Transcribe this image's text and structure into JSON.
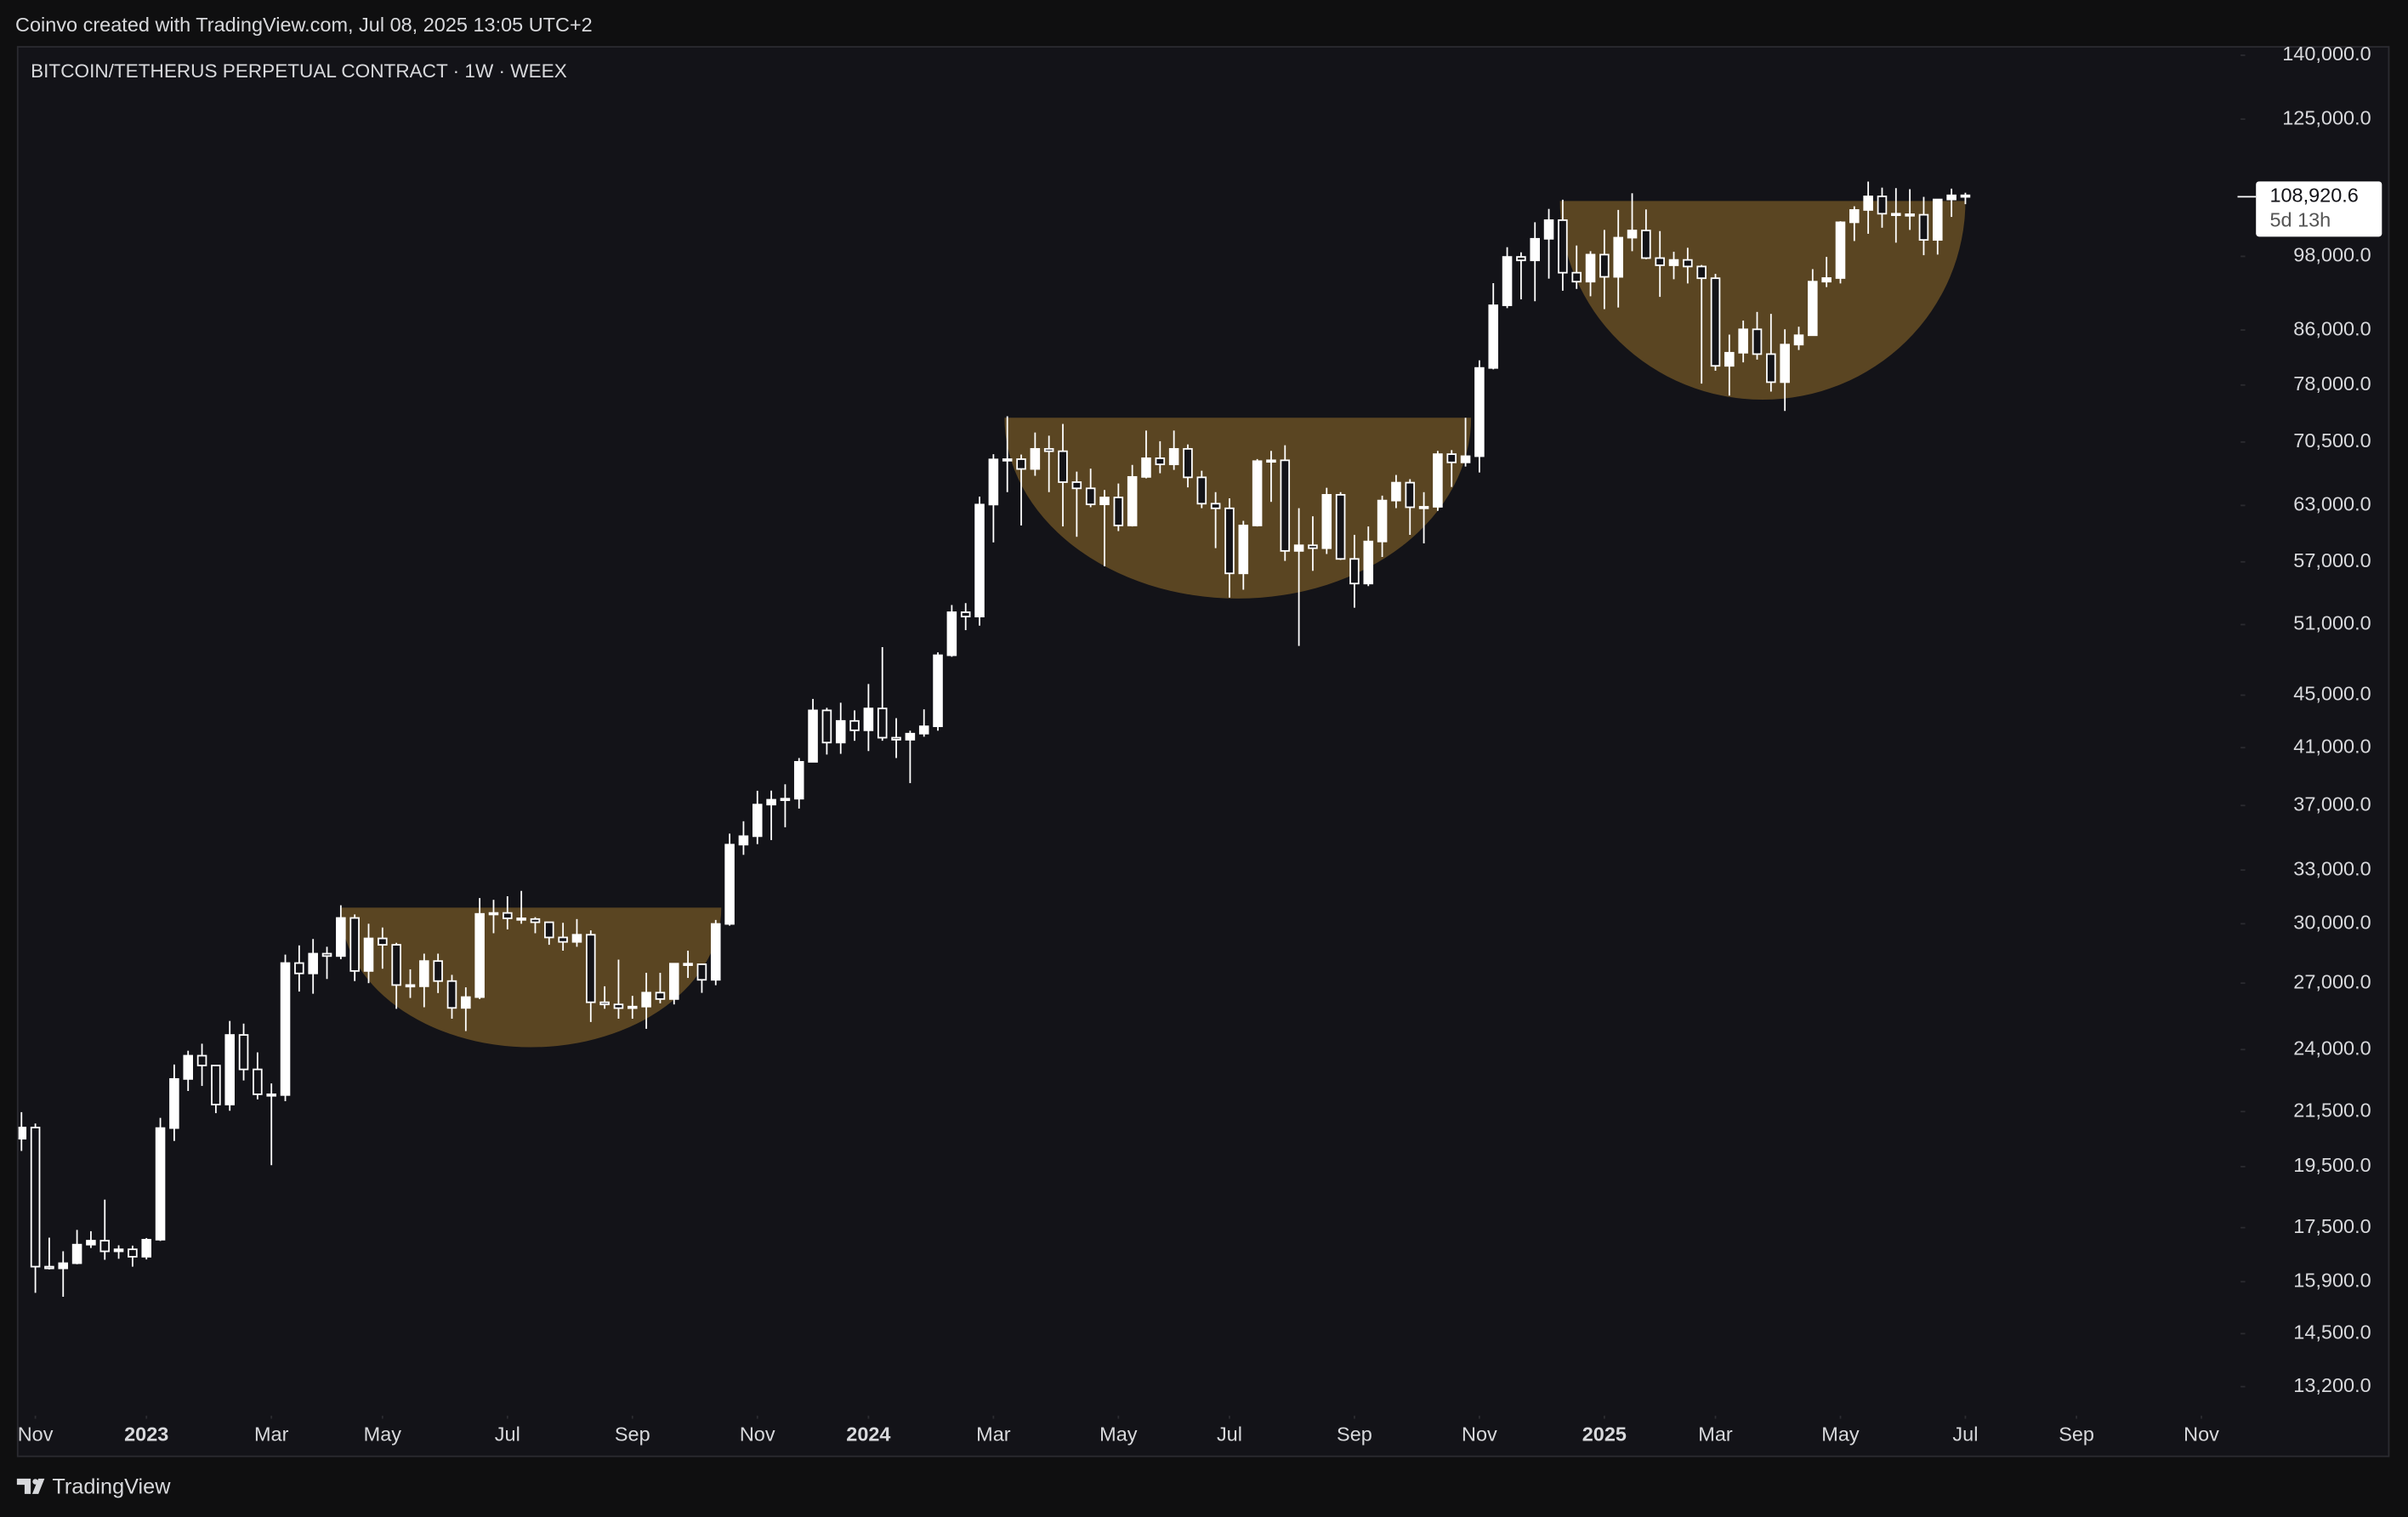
{
  "header": "Coinvo created with TradingView.com, Jul 08, 2025 13:05 UTC+2",
  "footer": "TradingView",
  "chart_data": {
    "type": "candlestick",
    "title": "BITCOIN/TETHERUS PERPETUAL CONTRACT · 1W · WEEX",
    "log_scale": true,
    "up_color": "#ffffff",
    "down_color": "#131318",
    "wick_color": "#ffffff",
    "cup_color": "#5a4522",
    "xlim": [
      -0.22,
      159.6
    ],
    "ylim": [
      142300,
      11680
    ],
    "xticks": [
      {
        "value": 1,
        "label": "Nov"
      },
      {
        "value": 9,
        "label": "2023"
      },
      {
        "value": 18,
        "label": "Mar"
      },
      {
        "value": 26,
        "label": "May"
      },
      {
        "value": 35,
        "label": "Jul"
      },
      {
        "value": 44,
        "label": "Sep"
      },
      {
        "value": 53,
        "label": "Nov"
      },
      {
        "value": 61,
        "label": "2024"
      },
      {
        "value": 70,
        "label": "Mar"
      },
      {
        "value": 79,
        "label": "May"
      },
      {
        "value": 87,
        "label": "Jul"
      },
      {
        "value": 96,
        "label": "Sep"
      },
      {
        "value": 105,
        "label": "Nov"
      },
      {
        "value": 114,
        "label": "2025"
      },
      {
        "value": 122,
        "label": "Mar"
      },
      {
        "value": 131,
        "label": "May"
      },
      {
        "value": 140,
        "label": "Jul"
      },
      {
        "value": 148,
        "label": "Sep"
      },
      {
        "value": 157,
        "label": "Nov"
      }
    ],
    "yticks": [
      {
        "value": 140000,
        "label": "140,000.0"
      },
      {
        "value": 125000,
        "label": "125,000.0"
      },
      {
        "value": 98000,
        "label": "98,000.0"
      },
      {
        "value": 86000,
        "label": "86,000.0"
      },
      {
        "value": 78000,
        "label": "78,000.0"
      },
      {
        "value": 70500,
        "label": "70,500.0"
      },
      {
        "value": 63000,
        "label": "63,000.0"
      },
      {
        "value": 57000,
        "label": "57,000.0"
      },
      {
        "value": 51000,
        "label": "51,000.0"
      },
      {
        "value": 45000,
        "label": "45,000.0"
      },
      {
        "value": 41000,
        "label": "41,000.0"
      },
      {
        "value": 37000,
        "label": "37,000.0"
      },
      {
        "value": 33000,
        "label": "33,000.0"
      },
      {
        "value": 30000,
        "label": "30,000.0"
      },
      {
        "value": 27000,
        "label": "27,000.0"
      },
      {
        "value": 24000,
        "label": "24,000.0"
      },
      {
        "value": 21500,
        "label": "21,500.0"
      },
      {
        "value": 19500,
        "label": "19,500.0"
      },
      {
        "value": 17500,
        "label": "17,500.0"
      },
      {
        "value": 15900,
        "label": "15,900.0"
      },
      {
        "value": 14500,
        "label": "14,500.0"
      },
      {
        "value": 13200,
        "label": "13,200.0"
      }
    ],
    "last_price": {
      "value": 108920.6,
      "label": "108,920.6",
      "countdown": "5d 13h"
    },
    "cups": [
      {
        "x0": 23.0,
        "x1": 50.4,
        "top": 30870,
        "bottom": 24100
      },
      {
        "x0": 70.8,
        "x1": 104.4,
        "top": 73600,
        "bottom": 53400
      },
      {
        "x0": 110.8,
        "x1": 140.0,
        "top": 108100,
        "bottom": 76000
      }
    ],
    "open": [
      20490,
      20900,
      16330,
      16280,
      16430,
      16980,
      17100,
      16780,
      16840,
      16620,
      17130,
      20880,
      22780,
      23740,
      23330,
      21770,
      24630,
      23170,
      22170,
      22140,
      27980,
      27470,
      28450,
      28330,
      30310,
      27590,
      29230,
      28900,
      26910,
      26850,
      28080,
      27100,
      25840,
      26340,
      30530,
      30580,
      30290,
      30250,
      30080,
      29280,
      29050,
      29420,
      26100,
      26000,
      25830,
      25900,
      26550,
      26250,
      27950,
      27920,
      27160,
      29990,
      34520,
      35040,
      37060,
      37380,
      37450,
      39980,
      43800,
      41370,
      42990,
      42280,
      43950,
      41730,
      41580,
      42030,
      42580,
      48300,
      52130,
      51730,
      63100,
      68360,
      68390,
      67210,
      69650,
      69360,
      65660,
      64940,
      63120,
      63900,
      60800,
      66270,
      68500,
      67760,
      69650,
      66220,
      63200,
      62680,
      55850,
      60800,
      68150,
      68250,
      58120,
      58700,
      58400,
      64200,
      57300,
      54850,
      59100,
      63550,
      65600,
      62800,
      62850,
      69000,
      68000,
      68750,
      80400,
      89850,
      97900,
      97300,
      101100,
      104500,
      95200,
      93700,
      98300,
      94500,
      101300,
      102600,
      97700,
      96460,
      97380,
      96250,
      94270,
      80700,
      82600,
      86100,
      82400,
      78400,
      83800,
      85200,
      93700,
      94300,
      104100,
      106400,
      109000,
      105700,
      105600,
      105500,
      100900,
      108400,
      109200
    ],
    "high": [
      21480,
      21050,
      17190,
      16780,
      17430,
      17390,
      18390,
      16960,
      16950,
      17180,
      21260,
      23370,
      23950,
      24250,
      23350,
      25250,
      25130,
      23880,
      22600,
      28400,
      28870,
      29200,
      28800,
      31000,
      30500,
      30000,
      29800,
      29000,
      27670,
      28450,
      28450,
      27400,
      26800,
      31400,
      31300,
      31500,
      31800,
      30350,
      30100,
      30050,
      30250,
      29650,
      26850,
      28150,
      26400,
      27500,
      27500,
      27300,
      28600,
      27950,
      30200,
      35200,
      35980,
      37980,
      37990,
      38420,
      40250,
      44700,
      44000,
      44400,
      43800,
      45900,
      49000,
      43200,
      42250,
      43880,
      48550,
      52800,
      52980,
      64000,
      69000,
      73800,
      68950,
      71700,
      71300,
      72800,
      66900,
      67250,
      64750,
      65500,
      67700,
      71950,
      70600,
      71950,
      70200,
      67000,
      64500,
      63800,
      61300,
      68400,
      69400,
      70100,
      62700,
      61800,
      65000,
      64500,
      59800,
      60700,
      64100,
      66500,
      66000,
      64500,
      69400,
      69500,
      73600,
      81500,
      93450,
      99600,
      98700,
      104100,
      106600,
      108350,
      99900,
      98900,
      102700,
      106400,
      109600,
      106500,
      102500,
      98800,
      99500,
      96500,
      95000,
      85300,
      87450,
      88800,
      88500,
      86100,
      86500,
      95800,
      97900,
      104300,
      107100,
      111900,
      110700,
      110600,
      110400,
      108900,
      108500,
      110500,
      109700
    ],
    "low": [
      20050,
      15590,
      16250,
      15480,
      16400,
      16880,
      16530,
      16560,
      16330,
      16540,
      17090,
      20410,
      22300,
      22500,
      21440,
      21530,
      22720,
      21970,
      19550,
      21900,
      26600,
      26500,
      27200,
      28170,
      27100,
      27000,
      27700,
      25800,
      26300,
      25870,
      26530,
      25350,
      24800,
      26250,
      29500,
      29700,
      30000,
      29500,
      28900,
      28600,
      28800,
      25200,
      25800,
      25350,
      25350,
      24900,
      26050,
      26000,
      27250,
      26540,
      26900,
      29900,
      33900,
      34550,
      34800,
      35600,
      36800,
      39970,
      40500,
      40550,
      41500,
      40750,
      41500,
      40250,
      38500,
      41800,
      42250,
      48170,
      50500,
      50900,
      59000,
      64500,
      60800,
      66400,
      64500,
      60700,
      59600,
      62800,
      56550,
      60200,
      60700,
      66100,
      66700,
      67100,
      65050,
      62700,
      58400,
      53500,
      54250,
      60700,
      63400,
      57100,
      49100,
      56100,
      57800,
      57200,
      52550,
      54600,
      57500,
      62700,
      59800,
      58900,
      62400,
      65100,
      67500,
      66800,
      80200,
      89400,
      90800,
      90500,
      94200,
      92200,
      92500,
      91300,
      89250,
      89500,
      98900,
      97500,
      91200,
      94100,
      93400,
      78200,
      80000,
      76550,
      81200,
      81600,
      77100,
      74500,
      83000,
      85100,
      92800,
      93400,
      100700,
      102000,
      103100,
      100400,
      102700,
      98200,
      98300,
      105100,
      107500
    ],
    "close": [
      20900,
      16330,
      16280,
      16430,
      16980,
      17100,
      16780,
      16840,
      16620,
      17130,
      20880,
      22780,
      23740,
      23330,
      21770,
      24630,
      23170,
      22170,
      22140,
      27980,
      27470,
      28450,
      28330,
      30310,
      27590,
      29230,
      28900,
      26910,
      26850,
      28080,
      27100,
      25840,
      26340,
      30530,
      30580,
      30290,
      30250,
      30080,
      29280,
      29050,
      29420,
      26100,
      26000,
      25830,
      25900,
      26550,
      26250,
      27950,
      27920,
      27160,
      29990,
      34520,
      35040,
      37060,
      37380,
      37450,
      39980,
      43800,
      41370,
      42990,
      42280,
      43950,
      41730,
      41580,
      42030,
      42580,
      48300,
      52130,
      51730,
      63100,
      68360,
      68390,
      67210,
      69650,
      69360,
      65660,
      64940,
      63120,
      63900,
      60800,
      66270,
      68500,
      67760,
      69650,
      66220,
      63200,
      62680,
      55850,
      60800,
      68150,
      68250,
      58120,
      58700,
      58400,
      64200,
      57300,
      54850,
      59100,
      63550,
      65600,
      62800,
      62850,
      69000,
      68000,
      68750,
      80400,
      89850,
      97900,
      97300,
      101100,
      104500,
      95200,
      93700,
      98300,
      94500,
      101300,
      102600,
      97700,
      96460,
      97380,
      96250,
      94270,
      80700,
      82600,
      86100,
      82400,
      78400,
      83800,
      85200,
      93700,
      94300,
      104100,
      106400,
      109000,
      105700,
      105600,
      105500,
      100900,
      108400,
      109200,
      108920.6
    ]
  }
}
